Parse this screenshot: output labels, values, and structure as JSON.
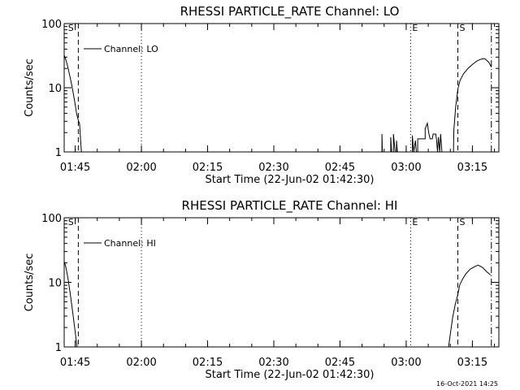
{
  "chart_data": [
    {
      "type": "line",
      "title": "RHESSI PARTICLE_RATE Channel: LO",
      "xlabel": "Start Time (22-Jun-02 01:42:30)",
      "ylabel": "Counts/sec",
      "yscale": "log",
      "ylim": [
        1,
        100
      ],
      "ytick_values": [
        1,
        10,
        100
      ],
      "ytick_labels": [
        "1",
        "10",
        "100"
      ],
      "xlim_minutes": [
        0,
        98.5
      ],
      "xtick_minutes": [
        2.5,
        17.5,
        32.5,
        47.5,
        62.5,
        77.5,
        92.5
      ],
      "xtick_labels": [
        "01:45",
        "02:00",
        "02:15",
        "02:30",
        "02:45",
        "03:00",
        "03:15"
      ],
      "legend": "Channel: LO",
      "markers": [
        {
          "label": "S",
          "minute": 0.5,
          "style": "none"
        },
        {
          "label": "",
          "minute": 3.2,
          "style": "dashed"
        },
        {
          "label": "",
          "minute": 17.5,
          "style": "dotted"
        },
        {
          "label": "E",
          "minute": 78.5,
          "style": "dotted"
        },
        {
          "label": "S",
          "minute": 89.2,
          "style": "dashed"
        },
        {
          "label": "",
          "minute": 96.8,
          "style": "dashdot"
        }
      ],
      "segments": [
        [
          [
            0.0,
            32
          ],
          [
            0.4,
            27
          ],
          [
            0.9,
            20
          ],
          [
            1.4,
            14
          ],
          [
            1.9,
            9.5
          ],
          [
            2.4,
            6
          ],
          [
            2.8,
            4
          ],
          [
            3.1,
            3.3
          ],
          [
            3.5,
            2.7
          ],
          [
            3.7,
            1.6
          ],
          [
            3.9,
            1.0
          ]
        ],
        [
          [
            72.0,
            1.0
          ],
          [
            72.0,
            1.9
          ],
          [
            72.1,
            1.0
          ]
        ],
        [
          [
            74.0,
            1.0
          ],
          [
            74.0,
            1.7
          ],
          [
            74.2,
            1.0
          ],
          [
            74.6,
            1.0
          ],
          [
            74.6,
            1.9
          ],
          [
            75.0,
            1.0
          ],
          [
            75.3,
            1.0
          ],
          [
            75.3,
            1.5
          ],
          [
            75.5,
            1.0
          ]
        ],
        [
          [
            78.9,
            1.0
          ],
          [
            78.9,
            1.8
          ],
          [
            79.2,
            1.0
          ],
          [
            79.6,
            1.5
          ],
          [
            79.8,
            1.0
          ],
          [
            80.1,
            1.0
          ],
          [
            80.1,
            1.6
          ],
          [
            81.8,
            1.6
          ],
          [
            81.8,
            2.3
          ],
          [
            82.3,
            2.8
          ],
          [
            82.6,
            2.0
          ],
          [
            82.9,
            1.6
          ],
          [
            83.4,
            1.6
          ],
          [
            83.6,
            1.9
          ],
          [
            84.2,
            1.9
          ],
          [
            84.4,
            1.5
          ],
          [
            84.6,
            1.0
          ],
          [
            84.8,
            1.7
          ],
          [
            85.1,
            1.0
          ],
          [
            85.3,
            1.9
          ],
          [
            85.6,
            1.0
          ]
        ],
        [
          [
            88.2,
            1.0
          ],
          [
            88.3,
            2.2
          ],
          [
            88.7,
            5
          ],
          [
            89.2,
            9.5
          ],
          [
            89.7,
            13
          ],
          [
            90.5,
            16.5
          ],
          [
            91.5,
            20
          ],
          [
            92.5,
            23
          ],
          [
            93.5,
            26
          ],
          [
            94.5,
            28
          ],
          [
            95.3,
            28.5
          ],
          [
            96.2,
            25
          ],
          [
            96.8,
            21
          ]
        ]
      ]
    },
    {
      "type": "line",
      "title": "RHESSI PARTICLE_RATE Channel: HI",
      "xlabel": "Start Time (22-Jun-02 01:42:30)",
      "ylabel": "Counts/sec",
      "yscale": "log",
      "ylim": [
        1,
        100
      ],
      "ytick_values": [
        1,
        10,
        100
      ],
      "ytick_labels": [
        "1",
        "10",
        "100"
      ],
      "xlim_minutes": [
        0,
        98.5
      ],
      "xtick_minutes": [
        2.5,
        17.5,
        32.5,
        47.5,
        62.5,
        77.5,
        92.5
      ],
      "xtick_labels": [
        "01:45",
        "02:00",
        "02:15",
        "02:30",
        "02:45",
        "03:00",
        "03:15"
      ],
      "legend": "Channel: HI",
      "markers": [
        {
          "label": "S",
          "minute": 0.5,
          "style": "none"
        },
        {
          "label": "",
          "minute": 3.2,
          "style": "dashed"
        },
        {
          "label": "",
          "minute": 17.5,
          "style": "dotted"
        },
        {
          "label": "E",
          "minute": 78.5,
          "style": "dotted"
        },
        {
          "label": "S",
          "minute": 89.2,
          "style": "dashed"
        },
        {
          "label": "",
          "minute": 96.8,
          "style": "dashdot"
        }
      ],
      "segments": [
        [
          [
            0.0,
            21
          ],
          [
            0.4,
            17
          ],
          [
            0.9,
            11
          ],
          [
            1.4,
            6.5
          ],
          [
            1.8,
            4
          ],
          [
            2.2,
            2.5
          ],
          [
            2.6,
            1.5
          ],
          [
            2.9,
            1.0
          ]
        ],
        [
          [
            87.1,
            1.0
          ],
          [
            87.5,
            1.6
          ],
          [
            88.0,
            2.8
          ],
          [
            88.6,
            4.5
          ],
          [
            89.2,
            6.5
          ],
          [
            89.6,
            9
          ],
          [
            90.2,
            11
          ],
          [
            91.0,
            13.5
          ],
          [
            92.0,
            16
          ],
          [
            93.0,
            17.5
          ],
          [
            93.8,
            18.5
          ],
          [
            94.8,
            17
          ],
          [
            95.8,
            14.5
          ],
          [
            96.6,
            13
          ]
        ]
      ]
    }
  ],
  "footer": {
    "timestamp": "16-Oct-2021 14:25"
  }
}
